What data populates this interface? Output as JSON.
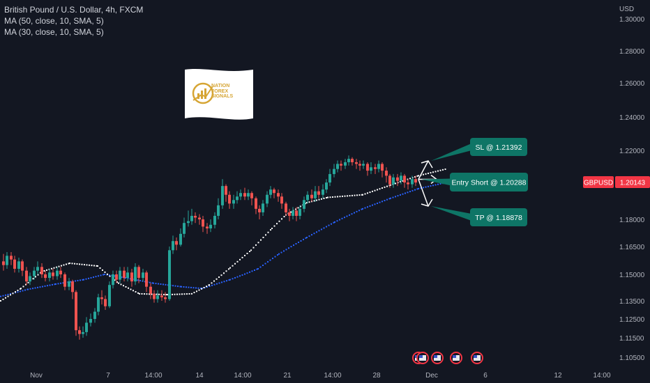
{
  "legend": {
    "title": "British Pound / U.S. Dollar, 4h, FXCM",
    "ma50": "MA (50, close, 10, SMA, 5)",
    "ma30": "MA (30, close, 10, SMA, 5)"
  },
  "logo": {
    "line1": "NATION",
    "line2": "FOREX",
    "line3": "SIGNALS"
  },
  "colors": {
    "background": "#131722",
    "up": "#26a69a",
    "down": "#ef5350",
    "ma50": "#2962ff",
    "ma30": "#ffffff",
    "label_bg": "#0e7566",
    "price_tag": "#f23645"
  },
  "chart_data": {
    "type": "candlestick",
    "symbol": "GBPUSD",
    "currency_label": "USD",
    "last_price": "1.20143",
    "y_ticks": [
      "1.30000",
      "1.28000",
      "1.26000",
      "1.24000",
      "1.22000",
      "1.18000",
      "1.16500",
      "1.15000",
      "1.13500",
      "1.12500",
      "1.11500",
      "1.10500"
    ],
    "x_ticks": [
      "Nov",
      "7",
      "14:00",
      "14",
      "14:00",
      "21",
      "14:00",
      "28",
      "Dec",
      "6",
      "12",
      "14:00"
    ],
    "annotations": [
      {
        "label": "SL @ 1.21392",
        "price": 1.21392
      },
      {
        "label": "Entry Short @ 1.20288",
        "price": 1.20288
      },
      {
        "label": "TP @ 1.18878",
        "price": 1.18878
      }
    ],
    "ma_series": [
      {
        "name": "MA (50, close, 10, SMA, 5)",
        "color": "#2962ff",
        "values": [
          [
            1,
            1.1375
          ],
          [
            40,
            1.1415
          ],
          [
            80,
            1.1445
          ],
          [
            120,
            1.147
          ],
          [
            150,
            1.15
          ],
          [
            180,
            1.148
          ],
          [
            220,
            1.145
          ],
          [
            260,
            1.143
          ],
          [
            290,
            1.142
          ],
          [
            330,
            1.147
          ],
          [
            370,
            1.153
          ],
          [
            400,
            1.161
          ],
          [
            440,
            1.17
          ],
          [
            480,
            1.1785
          ],
          [
            520,
            1.186
          ],
          [
            560,
            1.192
          ],
          [
            600,
            1.1975
          ],
          [
            640,
            1.201
          ]
        ]
      },
      {
        "name": "MA (30, close, 10, SMA, 5)",
        "color": "#ffffff",
        "values": [
          [
            1,
            1.135
          ],
          [
            30,
            1.142
          ],
          [
            60,
            1.1515
          ],
          [
            100,
            1.156
          ],
          [
            140,
            1.1545
          ],
          [
            170,
            1.145
          ],
          [
            200,
            1.139
          ],
          [
            240,
            1.1385
          ],
          [
            275,
            1.139
          ],
          [
            300,
            1.144
          ],
          [
            330,
            1.1535
          ],
          [
            360,
            1.163
          ],
          [
            390,
            1.175
          ],
          [
            410,
            1.1825
          ],
          [
            440,
            1.1895
          ],
          [
            470,
            1.1925
          ],
          [
            520,
            1.194
          ],
          [
            560,
            1.1995
          ],
          [
            600,
            1.205
          ],
          [
            640,
            1.209
          ]
        ]
      }
    ],
    "candles": [
      [
        5,
        1.157,
        1.155,
        1.161,
        1.152
      ],
      [
        10,
        1.155,
        1.16,
        1.162,
        1.153
      ],
      [
        16,
        1.16,
        1.158,
        1.162,
        1.155
      ],
      [
        21,
        1.158,
        1.153,
        1.16,
        1.151
      ],
      [
        27,
        1.153,
        1.157,
        1.159,
        1.151
      ],
      [
        32,
        1.157,
        1.152,
        1.158,
        1.149
      ],
      [
        38,
        1.152,
        1.146,
        1.154,
        1.144
      ],
      [
        43,
        1.146,
        1.149,
        1.151,
        1.144
      ],
      [
        49,
        1.149,
        1.152,
        1.154,
        1.147
      ],
      [
        54,
        1.152,
        1.154,
        1.157,
        1.15
      ],
      [
        60,
        1.154,
        1.15,
        1.156,
        1.148
      ],
      [
        65,
        1.15,
        1.148,
        1.152,
        1.146
      ],
      [
        71,
        1.148,
        1.151,
        1.153,
        1.146
      ],
      [
        76,
        1.151,
        1.149,
        1.153,
        1.147
      ],
      [
        82,
        1.149,
        1.152,
        1.154,
        1.147
      ],
      [
        87,
        1.152,
        1.15,
        1.154,
        1.148
      ],
      [
        93,
        1.15,
        1.143,
        1.151,
        1.141
      ],
      [
        99,
        1.143,
        1.146,
        1.148,
        1.141
      ],
      [
        104,
        1.146,
        1.14,
        1.147,
        1.136
      ],
      [
        109,
        1.14,
        1.119,
        1.141,
        1.116
      ],
      [
        114,
        1.119,
        1.117,
        1.121,
        1.114
      ],
      [
        119,
        1.117,
        1.118,
        1.121,
        1.115
      ],
      [
        124,
        1.118,
        1.123,
        1.126,
        1.116
      ],
      [
        130,
        1.123,
        1.125,
        1.128,
        1.121
      ],
      [
        136,
        1.125,
        1.129,
        1.131,
        1.123
      ],
      [
        141,
        1.129,
        1.137,
        1.139,
        1.127
      ],
      [
        146,
        1.137,
        1.136,
        1.141,
        1.133
      ],
      [
        151,
        1.136,
        1.132,
        1.138,
        1.13
      ],
      [
        157,
        1.132,
        1.144,
        1.146,
        1.131
      ],
      [
        162,
        1.144,
        1.15,
        1.152,
        1.142
      ],
      [
        167,
        1.15,
        1.147,
        1.152,
        1.145
      ],
      [
        172,
        1.147,
        1.152,
        1.154,
        1.145
      ],
      [
        178,
        1.152,
        1.148,
        1.154,
        1.146
      ],
      [
        183,
        1.148,
        1.151,
        1.154,
        1.146
      ],
      [
        189,
        1.151,
        1.146,
        1.153,
        1.143
      ],
      [
        194,
        1.146,
        1.154,
        1.156,
        1.144
      ],
      [
        199,
        1.154,
        1.148,
        1.155,
        1.145
      ],
      [
        205,
        1.148,
        1.151,
        1.153,
        1.146
      ],
      [
        210,
        1.151,
        1.143,
        1.152,
        1.14
      ],
      [
        216,
        1.143,
        1.139,
        1.145,
        1.136
      ],
      [
        221,
        1.139,
        1.136,
        1.141,
        1.134
      ],
      [
        226,
        1.136,
        1.138,
        1.141,
        1.134
      ],
      [
        232,
        1.138,
        1.137,
        1.141,
        1.135
      ],
      [
        237,
        1.137,
        1.136,
        1.14,
        1.134
      ],
      [
        243,
        1.136,
        1.163,
        1.165,
        1.135
      ],
      [
        248,
        1.163,
        1.168,
        1.171,
        1.161
      ],
      [
        253,
        1.168,
        1.166,
        1.17,
        1.163
      ],
      [
        259,
        1.166,
        1.172,
        1.175,
        1.165
      ],
      [
        264,
        1.172,
        1.178,
        1.181,
        1.17
      ],
      [
        270,
        1.178,
        1.179,
        1.185,
        1.176
      ],
      [
        275,
        1.179,
        1.182,
        1.186,
        1.177
      ],
      [
        280,
        1.182,
        1.181,
        1.184,
        1.178
      ],
      [
        286,
        1.181,
        1.18,
        1.183,
        1.177
      ],
      [
        291,
        1.18,
        1.176,
        1.182,
        1.173
      ],
      [
        297,
        1.176,
        1.175,
        1.178,
        1.172
      ],
      [
        302,
        1.175,
        1.177,
        1.18,
        1.173
      ],
      [
        308,
        1.177,
        1.182,
        1.184,
        1.175
      ],
      [
        313,
        1.182,
        1.188,
        1.192,
        1.18
      ],
      [
        319,
        1.188,
        1.199,
        1.203,
        1.186
      ],
      [
        324,
        1.199,
        1.194,
        1.2,
        1.19
      ],
      [
        329,
        1.194,
        1.189,
        1.196,
        1.186
      ],
      [
        335,
        1.189,
        1.191,
        1.194,
        1.186
      ],
      [
        340,
        1.191,
        1.193,
        1.196,
        1.189
      ],
      [
        345,
        1.193,
        1.195,
        1.197,
        1.191
      ],
      [
        351,
        1.195,
        1.193,
        1.198,
        1.191
      ],
      [
        356,
        1.193,
        1.195,
        1.197,
        1.191
      ],
      [
        361,
        1.195,
        1.192,
        1.196,
        1.188
      ],
      [
        367,
        1.192,
        1.186,
        1.193,
        1.183
      ],
      [
        372,
        1.186,
        1.184,
        1.188,
        1.18
      ],
      [
        377,
        1.184,
        1.189,
        1.191,
        1.182
      ],
      [
        383,
        1.189,
        1.194,
        1.196,
        1.187
      ],
      [
        388,
        1.194,
        1.197,
        1.199,
        1.192
      ],
      [
        393,
        1.197,
        1.195,
        1.198,
        1.192
      ],
      [
        399,
        1.195,
        1.193,
        1.197,
        1.19
      ],
      [
        404,
        1.193,
        1.189,
        1.195,
        1.186
      ],
      [
        410,
        1.189,
        1.184,
        1.19,
        1.182
      ],
      [
        415,
        1.184,
        1.182,
        1.186,
        1.179
      ],
      [
        420,
        1.182,
        1.185,
        1.187,
        1.18
      ],
      [
        425,
        1.185,
        1.182,
        1.187,
        1.179
      ],
      [
        430,
        1.182,
        1.186,
        1.188,
        1.18
      ],
      [
        436,
        1.186,
        1.191,
        1.193,
        1.184
      ],
      [
        441,
        1.191,
        1.194,
        1.196,
        1.189
      ],
      [
        447,
        1.194,
        1.192,
        1.197,
        1.19
      ],
      [
        452,
        1.192,
        1.196,
        1.199,
        1.19
      ],
      [
        457,
        1.196,
        1.194,
        1.199,
        1.192
      ],
      [
        463,
        1.194,
        1.197,
        1.2,
        1.192
      ],
      [
        468,
        1.197,
        1.201,
        1.203,
        1.195
      ],
      [
        473,
        1.201,
        1.206,
        1.209,
        1.199
      ],
      [
        479,
        1.206,
        1.209,
        1.212,
        1.204
      ],
      [
        484,
        1.209,
        1.212,
        1.214,
        1.207
      ],
      [
        489,
        1.212,
        1.211,
        1.214,
        1.208
      ],
      [
        495,
        1.211,
        1.213,
        1.215,
        1.209
      ],
      [
        500,
        1.213,
        1.215,
        1.217,
        1.211
      ],
      [
        505,
        1.215,
        1.213,
        1.216,
        1.211
      ],
      [
        511,
        1.213,
        1.212,
        1.215,
        1.209
      ],
      [
        516,
        1.212,
        1.211,
        1.214,
        1.208
      ],
      [
        521,
        1.211,
        1.212,
        1.214,
        1.209
      ],
      [
        527,
        1.212,
        1.208,
        1.213,
        1.205
      ],
      [
        532,
        1.208,
        1.21,
        1.213,
        1.206
      ],
      [
        538,
        1.21,
        1.209,
        1.212,
        1.206
      ],
      [
        543,
        1.209,
        1.212,
        1.214,
        1.207
      ],
      [
        548,
        1.212,
        1.208,
        1.213,
        1.204
      ],
      [
        554,
        1.208,
        1.205,
        1.21,
        1.201
      ],
      [
        559,
        1.205,
        1.2,
        1.206,
        1.198
      ],
      [
        564,
        1.2,
        1.204,
        1.206,
        1.198
      ],
      [
        570,
        1.204,
        1.202,
        1.206,
        1.199
      ],
      [
        575,
        1.202,
        1.205,
        1.207,
        1.2
      ],
      [
        580,
        1.205,
        1.201,
        1.206,
        1.198
      ],
      [
        585,
        1.201,
        1.2,
        1.203,
        1.197
      ],
      [
        591,
        1.2,
        1.203,
        1.205,
        1.198
      ],
      [
        596,
        1.203,
        1.201,
        1.205,
        1.199
      ]
    ]
  }
}
